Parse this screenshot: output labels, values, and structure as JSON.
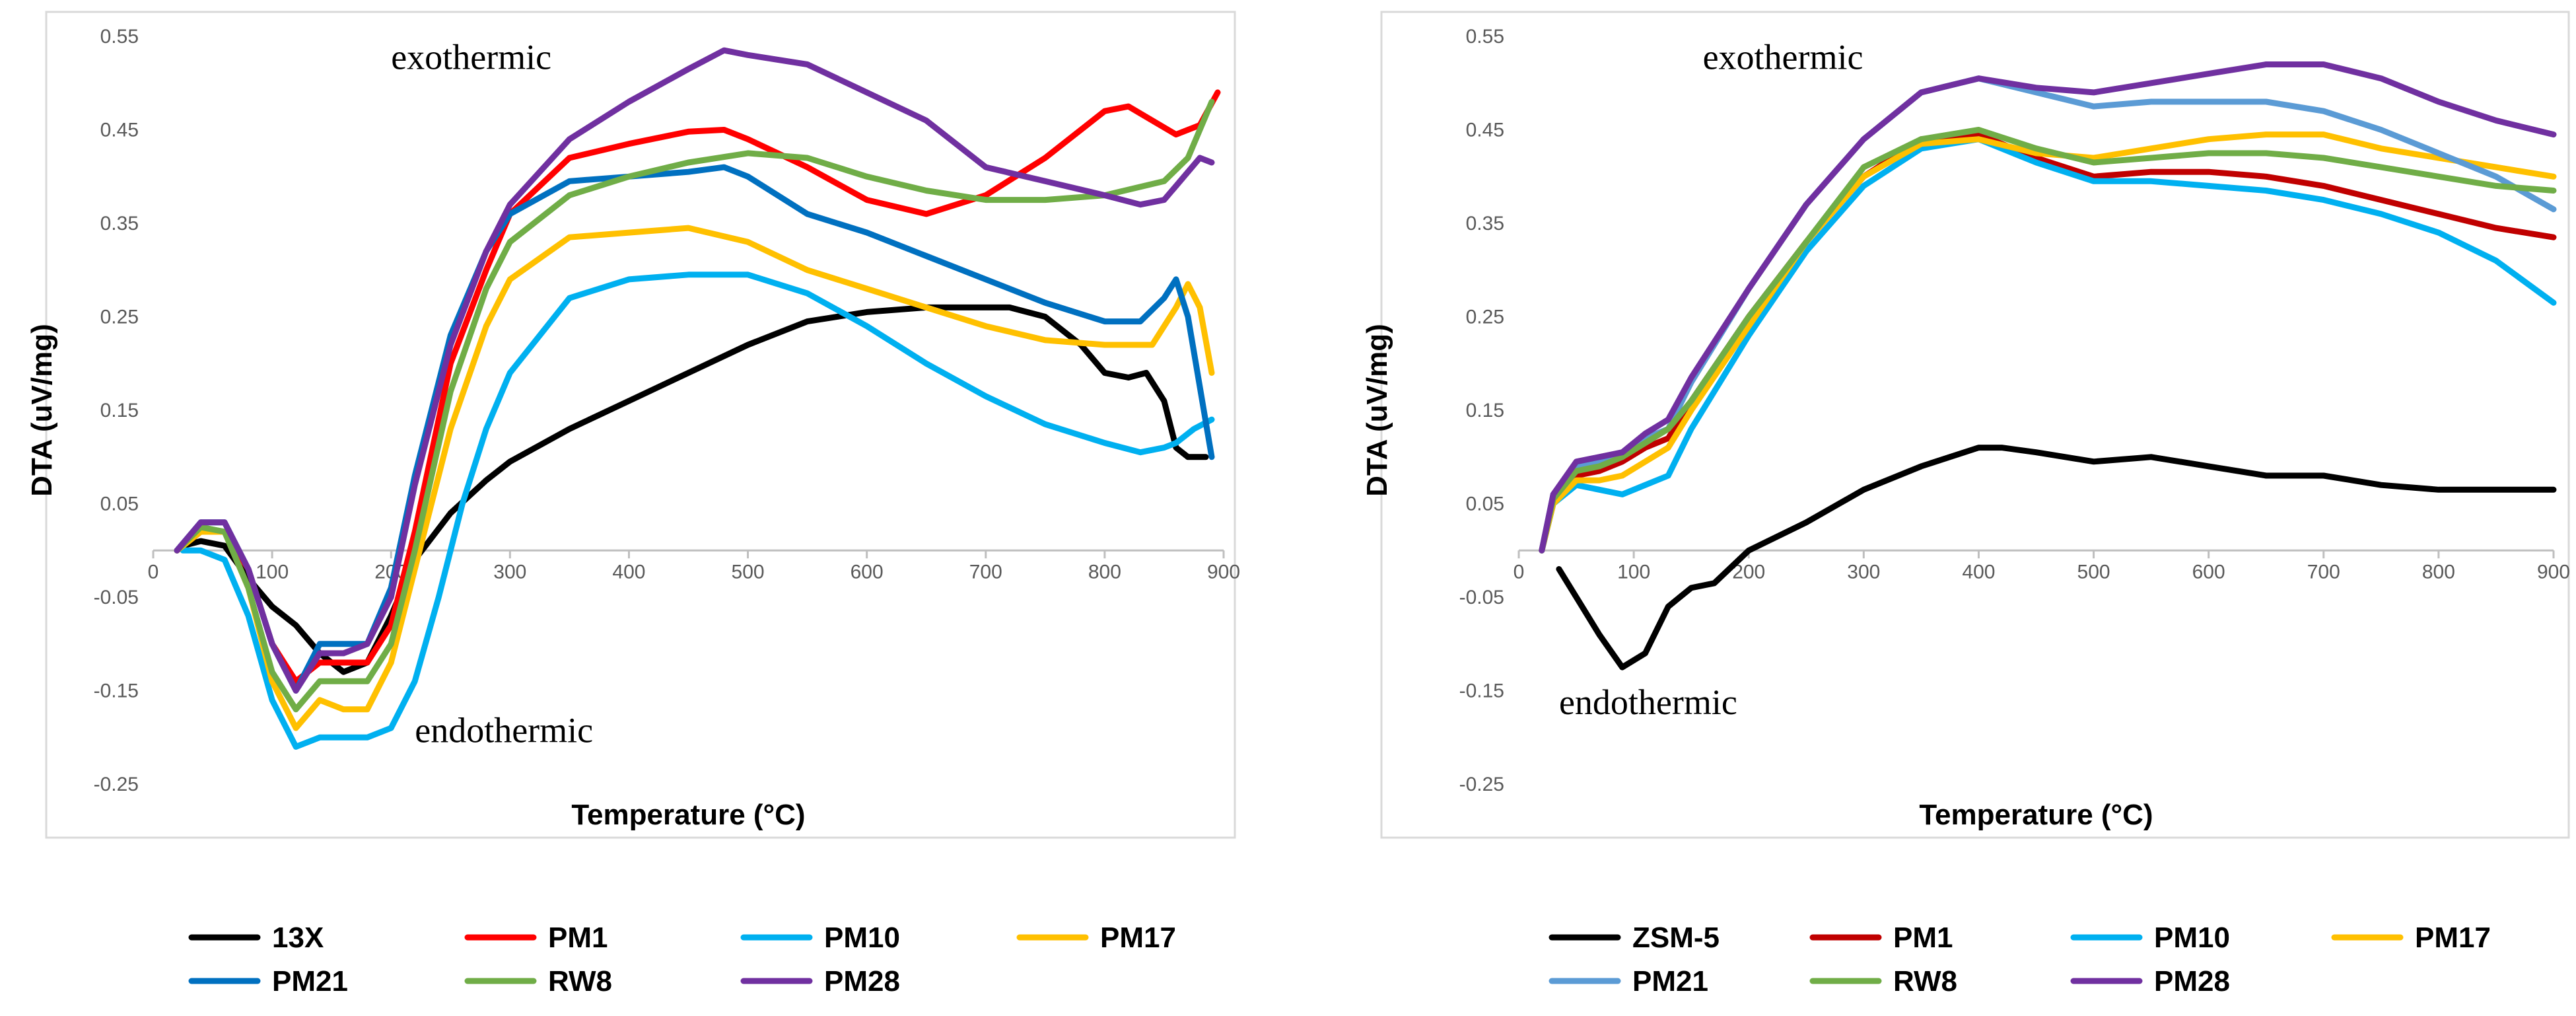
{
  "chart_data": [
    {
      "type": "line",
      "id": "left",
      "xlabel": "Temperature (°C)",
      "ylabel": "DTA (uV/mg)",
      "xlim": [
        0,
        900
      ],
      "ylim": [
        -0.25,
        0.55
      ],
      "xticks": [
        0,
        100,
        200,
        300,
        400,
        500,
        600,
        700,
        800,
        900
      ],
      "yticks": [
        -0.25,
        -0.15,
        -0.05,
        0.05,
        0.15,
        0.25,
        0.35,
        0.45,
        0.55
      ],
      "ytick_labels": [
        "-0.25",
        "-0.15",
        "-0.05",
        "0.05",
        "0.15",
        "0.25",
        "0.35",
        "0.45",
        "0.55"
      ],
      "annotations": [
        {
          "text": "exothermic",
          "x": 200,
          "y": 0.515
        },
        {
          "text": "endothermic",
          "x": 220,
          "y": -0.205
        }
      ],
      "legend_rows": [
        [
          "13X",
          "PM1",
          "PM10",
          "PM17"
        ],
        [
          "PM21",
          "RW8",
          "PM28"
        ]
      ],
      "series": [
        {
          "name": "13X",
          "color": "#000000",
          "x": [
            25,
            40,
            60,
            80,
            100,
            120,
            140,
            160,
            180,
            200,
            220,
            250,
            280,
            300,
            350,
            400,
            450,
            500,
            550,
            600,
            650,
            700,
            720,
            750,
            780,
            800,
            820,
            835,
            850,
            860,
            870,
            885
          ],
          "y": [
            0.005,
            0.01,
            0.005,
            -0.03,
            -0.06,
            -0.08,
            -0.11,
            -0.13,
            -0.12,
            -0.07,
            -0.01,
            0.04,
            0.075,
            0.095,
            0.13,
            0.16,
            0.19,
            0.22,
            0.245,
            0.255,
            0.26,
            0.26,
            0.26,
            0.25,
            0.22,
            0.19,
            0.185,
            0.19,
            0.16,
            0.11,
            0.1,
            0.1
          ]
        },
        {
          "name": "PM1",
          "color": "#ff0000",
          "x": [
            20,
            40,
            60,
            80,
            100,
            120,
            140,
            160,
            180,
            200,
            220,
            250,
            280,
            300,
            350,
            400,
            450,
            480,
            500,
            550,
            600,
            650,
            700,
            750,
            800,
            820,
            840,
            860,
            880,
            895
          ],
          "y": [
            0.0,
            0.02,
            0.02,
            -0.02,
            -0.1,
            -0.14,
            -0.12,
            -0.12,
            -0.12,
            -0.08,
            0.02,
            0.2,
            0.3,
            0.36,
            0.42,
            0.435,
            0.448,
            0.45,
            0.44,
            0.41,
            0.375,
            0.36,
            0.38,
            0.42,
            0.47,
            0.475,
            0.46,
            0.445,
            0.455,
            0.49
          ]
        },
        {
          "name": "PM10",
          "color": "#00b0f0",
          "x": [
            25,
            40,
            60,
            80,
            100,
            120,
            140,
            160,
            180,
            200,
            220,
            240,
            260,
            280,
            300,
            350,
            400,
            450,
            500,
            550,
            600,
            650,
            700,
            750,
            800,
            830,
            850,
            860,
            875,
            890
          ],
          "y": [
            0.0,
            0.0,
            -0.01,
            -0.07,
            -0.16,
            -0.21,
            -0.2,
            -0.2,
            -0.2,
            -0.19,
            -0.14,
            -0.05,
            0.05,
            0.13,
            0.19,
            0.27,
            0.29,
            0.295,
            0.295,
            0.275,
            0.24,
            0.2,
            0.165,
            0.135,
            0.115,
            0.105,
            0.11,
            0.115,
            0.13,
            0.14
          ]
        },
        {
          "name": "PM17",
          "color": "#ffc000",
          "x": [
            20,
            40,
            60,
            80,
            100,
            120,
            140,
            160,
            180,
            200,
            220,
            250,
            280,
            300,
            350,
            400,
            450,
            500,
            550,
            600,
            650,
            700,
            750,
            800,
            840,
            860,
            870,
            880,
            890
          ],
          "y": [
            0.0,
            0.02,
            0.02,
            -0.04,
            -0.14,
            -0.19,
            -0.16,
            -0.17,
            -0.17,
            -0.12,
            -0.02,
            0.13,
            0.24,
            0.29,
            0.335,
            0.34,
            0.345,
            0.33,
            0.3,
            0.28,
            0.26,
            0.24,
            0.225,
            0.22,
            0.22,
            0.26,
            0.285,
            0.26,
            0.19
          ]
        },
        {
          "name": "PM21",
          "color": "#0070c0",
          "x": [
            20,
            40,
            60,
            80,
            100,
            120,
            140,
            160,
            180,
            200,
            220,
            250,
            280,
            300,
            350,
            400,
            450,
            480,
            500,
            550,
            600,
            650,
            700,
            750,
            800,
            830,
            850,
            860,
            870,
            890
          ],
          "y": [
            0.0,
            0.03,
            0.03,
            -0.02,
            -0.1,
            -0.15,
            -0.1,
            -0.1,
            -0.1,
            -0.04,
            0.08,
            0.23,
            0.32,
            0.36,
            0.395,
            0.4,
            0.405,
            0.41,
            0.4,
            0.36,
            0.34,
            0.315,
            0.29,
            0.265,
            0.245,
            0.245,
            0.27,
            0.29,
            0.25,
            0.1
          ]
        },
        {
          "name": "RW8",
          "color": "#70ad47",
          "x": [
            20,
            40,
            60,
            80,
            100,
            120,
            140,
            160,
            180,
            200,
            220,
            250,
            280,
            300,
            350,
            400,
            450,
            500,
            550,
            600,
            650,
            700,
            750,
            800,
            850,
            870,
            890
          ],
          "y": [
            0.0,
            0.025,
            0.02,
            -0.04,
            -0.13,
            -0.17,
            -0.14,
            -0.14,
            -0.14,
            -0.1,
            0.0,
            0.17,
            0.28,
            0.33,
            0.38,
            0.4,
            0.415,
            0.425,
            0.42,
            0.4,
            0.385,
            0.375,
            0.375,
            0.38,
            0.395,
            0.42,
            0.48
          ]
        },
        {
          "name": "PM28",
          "color": "#7030a0",
          "x": [
            20,
            40,
            60,
            80,
            100,
            120,
            140,
            160,
            180,
            200,
            220,
            250,
            280,
            300,
            350,
            400,
            450,
            480,
            500,
            550,
            600,
            650,
            700,
            750,
            800,
            830,
            850,
            860,
            880,
            890
          ],
          "y": [
            0.0,
            0.03,
            0.03,
            -0.02,
            -0.1,
            -0.15,
            -0.11,
            -0.11,
            -0.1,
            -0.05,
            0.07,
            0.22,
            0.32,
            0.37,
            0.44,
            0.48,
            0.515,
            0.535,
            0.53,
            0.52,
            0.49,
            0.46,
            0.41,
            0.395,
            0.38,
            0.37,
            0.375,
            0.39,
            0.42,
            0.415
          ]
        }
      ]
    },
    {
      "type": "line",
      "id": "right",
      "xlabel": "Temperature (°C)",
      "ylabel": "DTA (uV/mg)",
      "xlim": [
        0,
        900
      ],
      "ylim": [
        -0.25,
        0.55
      ],
      "xticks": [
        0,
        100,
        200,
        300,
        400,
        500,
        600,
        700,
        800,
        900
      ],
      "yticks": [
        -0.25,
        -0.15,
        -0.05,
        0.05,
        0.15,
        0.25,
        0.35,
        0.45,
        0.55
      ],
      "ytick_labels": [
        "-0.25",
        "-0.15",
        "-0.05",
        "0.05",
        "0.15",
        "0.25",
        "0.35",
        "0.45",
        "0.55"
      ],
      "annotations": [
        {
          "text": "exothermic",
          "x": 160,
          "y": 0.515
        },
        {
          "text": "endothermic",
          "x": 35,
          "y": -0.175
        }
      ],
      "legend_rows": [
        [
          "ZSM-5",
          "PM1",
          "PM10",
          "PM17"
        ],
        [
          "PM21",
          "RW8",
          "PM28"
        ]
      ],
      "series": [
        {
          "name": "ZSM-5",
          "color": "#000000",
          "x": [
            35,
            50,
            70,
            90,
            110,
            130,
            150,
            170,
            200,
            250,
            300,
            350,
            400,
            420,
            450,
            500,
            550,
            600,
            650,
            700,
            750,
            800,
            850,
            900
          ],
          "y": [
            -0.02,
            -0.05,
            -0.09,
            -0.125,
            -0.11,
            -0.06,
            -0.04,
            -0.035,
            0.0,
            0.03,
            0.065,
            0.09,
            0.11,
            0.11,
            0.105,
            0.095,
            0.1,
            0.09,
            0.08,
            0.08,
            0.07,
            0.065,
            0.065,
            0.065
          ]
        },
        {
          "name": "PM1",
          "color": "#c00000",
          "x": [
            20,
            30,
            50,
            70,
            90,
            110,
            130,
            150,
            200,
            250,
            300,
            350,
            400,
            450,
            500,
            550,
            600,
            650,
            700,
            750,
            800,
            850,
            900
          ],
          "y": [
            0.0,
            0.05,
            0.08,
            0.085,
            0.095,
            0.11,
            0.12,
            0.16,
            0.25,
            0.33,
            0.4,
            0.44,
            0.445,
            0.42,
            0.4,
            0.405,
            0.405,
            0.4,
            0.39,
            0.375,
            0.36,
            0.345,
            0.335
          ]
        },
        {
          "name": "PM10",
          "color": "#00b0f0",
          "x": [
            20,
            30,
            50,
            70,
            90,
            110,
            130,
            150,
            200,
            250,
            300,
            350,
            400,
            450,
            500,
            550,
            600,
            650,
            700,
            750,
            800,
            850,
            900
          ],
          "y": [
            0.0,
            0.05,
            0.07,
            0.065,
            0.06,
            0.07,
            0.08,
            0.13,
            0.23,
            0.32,
            0.39,
            0.43,
            0.44,
            0.415,
            0.395,
            0.395,
            0.39,
            0.385,
            0.375,
            0.36,
            0.34,
            0.31,
            0.265
          ]
        },
        {
          "name": "PM17",
          "color": "#ffc000",
          "x": [
            20,
            30,
            50,
            70,
            90,
            110,
            130,
            150,
            200,
            250,
            300,
            350,
            400,
            450,
            500,
            550,
            600,
            650,
            700,
            750,
            800,
            850,
            900
          ],
          "y": [
            0.0,
            0.05,
            0.075,
            0.075,
            0.08,
            0.095,
            0.11,
            0.15,
            0.24,
            0.33,
            0.4,
            0.435,
            0.44,
            0.425,
            0.42,
            0.43,
            0.44,
            0.445,
            0.445,
            0.43,
            0.42,
            0.41,
            0.4
          ]
        },
        {
          "name": "PM21",
          "color": "#5b9bd5",
          "x": [
            20,
            30,
            50,
            70,
            90,
            110,
            130,
            150,
            200,
            250,
            300,
            350,
            400,
            450,
            500,
            550,
            600,
            650,
            700,
            750,
            800,
            850,
            900
          ],
          "y": [
            0.0,
            0.06,
            0.09,
            0.095,
            0.1,
            0.12,
            0.13,
            0.18,
            0.28,
            0.37,
            0.44,
            0.49,
            0.505,
            0.49,
            0.475,
            0.48,
            0.48,
            0.48,
            0.47,
            0.45,
            0.425,
            0.4,
            0.365
          ]
        },
        {
          "name": "RW8",
          "color": "#70ad47",
          "x": [
            20,
            30,
            50,
            70,
            90,
            110,
            130,
            150,
            200,
            250,
            300,
            350,
            400,
            450,
            500,
            550,
            600,
            650,
            700,
            750,
            800,
            850,
            900
          ],
          "y": [
            0.0,
            0.055,
            0.085,
            0.09,
            0.1,
            0.115,
            0.13,
            0.16,
            0.25,
            0.33,
            0.41,
            0.44,
            0.45,
            0.43,
            0.415,
            0.42,
            0.425,
            0.425,
            0.42,
            0.41,
            0.4,
            0.39,
            0.385
          ]
        },
        {
          "name": "PM28",
          "color": "#7030a0",
          "x": [
            20,
            30,
            50,
            70,
            90,
            110,
            130,
            150,
            200,
            250,
            300,
            350,
            400,
            450,
            500,
            550,
            600,
            650,
            700,
            750,
            800,
            850,
            900
          ],
          "y": [
            0.0,
            0.06,
            0.095,
            0.1,
            0.105,
            0.125,
            0.14,
            0.185,
            0.28,
            0.37,
            0.44,
            0.49,
            0.505,
            0.495,
            0.49,
            0.5,
            0.51,
            0.52,
            0.52,
            0.505,
            0.48,
            0.46,
            0.445
          ]
        }
      ]
    }
  ]
}
